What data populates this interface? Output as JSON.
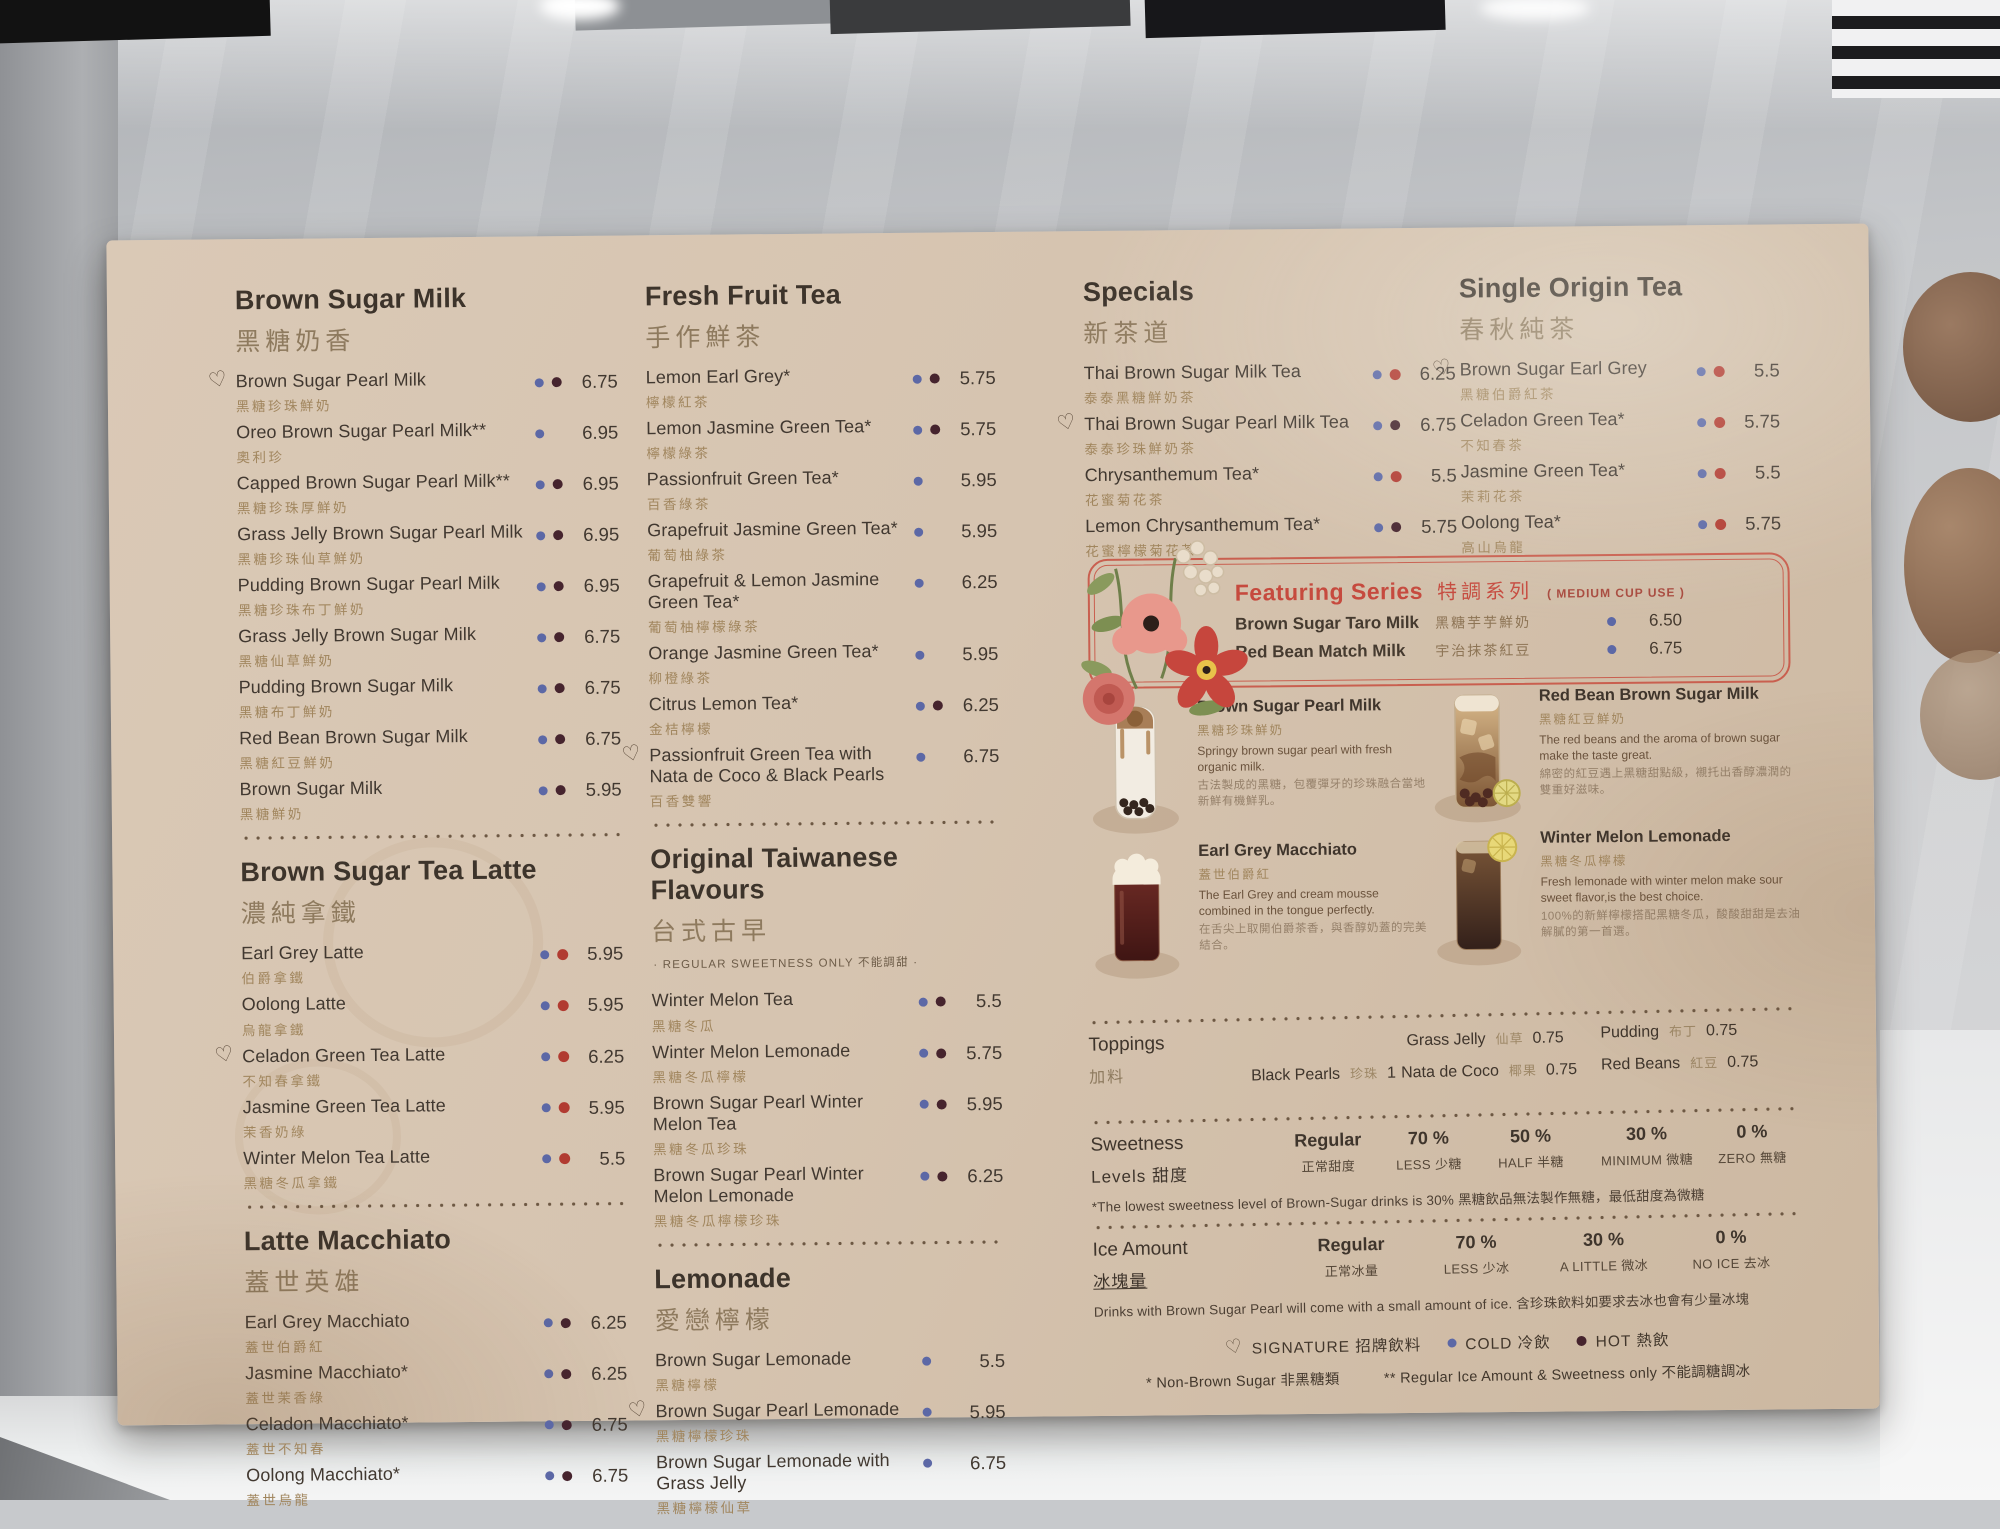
{
  "palette": {
    "card_bg": "#d6c4b0",
    "ink": "#413830",
    "zh_text": "#a1865e",
    "accent_red": "#c64a3e",
    "dot_cold": "#5c68a6",
    "dot_hot": "#46242e",
    "dot_hot_red": "#b13b31"
  },
  "sections": {
    "brown_sugar_milk": {
      "title": "Brown Sugar Milk",
      "subtitle": "黑糖奶香",
      "items": [
        {
          "name": "Brown Sugar Pearl Milk",
          "zh": "黑糖珍珠鮮奶",
          "price": "6.75",
          "dots": [
            "cold",
            "hot"
          ],
          "signature": true
        },
        {
          "name": "Oreo Brown Sugar Pearl Milk**",
          "zh": "奧利珍",
          "price": "6.95",
          "dots": [
            "cold"
          ]
        },
        {
          "name": "Capped Brown Sugar Pearl Milk**",
          "zh": "黑糖珍珠厚鮮奶",
          "price": "6.95",
          "dots": [
            "cold",
            "hot"
          ]
        },
        {
          "name": "Grass Jelly Brown Sugar Pearl Milk",
          "zh": "黑糖珍珠仙草鮮奶",
          "price": "6.95",
          "dots": [
            "cold",
            "hot"
          ]
        },
        {
          "name": "Pudding Brown Sugar Pearl Milk",
          "zh": "黑糖珍珠布丁鮮奶",
          "price": "6.95",
          "dots": [
            "cold",
            "hot"
          ]
        },
        {
          "name": "Grass Jelly Brown Sugar Milk",
          "zh": "黑糖仙草鮮奶",
          "price": "6.75",
          "dots": [
            "cold",
            "hot"
          ]
        },
        {
          "name": "Pudding Brown Sugar Milk",
          "zh": "黑糖布丁鮮奶",
          "price": "6.75",
          "dots": [
            "cold",
            "hot"
          ]
        },
        {
          "name": "Red Bean Brown Sugar Milk",
          "zh": "黑糖紅豆鮮奶",
          "price": "6.75",
          "dots": [
            "cold",
            "hot"
          ]
        },
        {
          "name": "Brown Sugar Milk",
          "zh": "黑糖鮮奶",
          "price": "5.95",
          "dots": [
            "cold",
            "hot"
          ]
        }
      ]
    },
    "brown_sugar_tea_latte": {
      "title": "Brown Sugar Tea Latte",
      "subtitle": "濃純拿鐵",
      "items": [
        {
          "name": "Earl Grey Latte",
          "zh": "伯爵拿鐵",
          "price": "5.95",
          "dots": [
            "cold",
            "hot-red"
          ]
        },
        {
          "name": "Oolong Latte",
          "zh": "烏龍拿鐵",
          "price": "5.95",
          "dots": [
            "cold",
            "hot-red"
          ]
        },
        {
          "name": "Celadon Green Tea Latte",
          "zh": "不知春拿鐵",
          "price": "6.25",
          "dots": [
            "cold",
            "hot-red"
          ],
          "signature": true
        },
        {
          "name": "Jasmine Green Tea Latte",
          "zh": "茉香奶綠",
          "price": "5.95",
          "dots": [
            "cold",
            "hot-red"
          ]
        },
        {
          "name": "Winter Melon Tea Latte",
          "zh": "黑糖冬瓜拿鐵",
          "price": "5.5",
          "dots": [
            "cold",
            "hot-red"
          ]
        }
      ]
    },
    "latte_macchiato": {
      "title": "Latte Macchiato",
      "subtitle": "蓋世英雄",
      "items": [
        {
          "name": "Earl Grey Macchiato",
          "zh": "蓋世伯爵紅",
          "price": "6.25",
          "dots": [
            "cold",
            "hot"
          ]
        },
        {
          "name": "Jasmine Macchiato*",
          "zh": "蓋世茉香綠",
          "price": "6.25",
          "dots": [
            "cold",
            "hot"
          ]
        },
        {
          "name": "Celadon Macchiato*",
          "zh": "蓋世不知春",
          "price": "6.75",
          "dots": [
            "cold",
            "hot"
          ]
        },
        {
          "name": "Oolong Macchiato*",
          "zh": "蓋世烏龍",
          "price": "6.75",
          "dots": [
            "cold",
            "hot"
          ]
        }
      ]
    },
    "fresh_fruit_tea": {
      "title": "Fresh Fruit Tea",
      "subtitle": "手作鮮茶",
      "items": [
        {
          "name": "Lemon Earl Grey*",
          "zh": "檸檬紅茶",
          "price": "5.75",
          "dots": [
            "cold",
            "hot"
          ]
        },
        {
          "name": "Lemon Jasmine Green Tea*",
          "zh": "檸檬綠茶",
          "price": "5.75",
          "dots": [
            "cold",
            "hot"
          ]
        },
        {
          "name": "Passionfruit Green Tea*",
          "zh": "百香綠茶",
          "price": "5.95",
          "dots": [
            "cold"
          ]
        },
        {
          "name": "Grapefruit Jasmine Green Tea*",
          "zh": "葡萄柚綠茶",
          "price": "5.95",
          "dots": [
            "cold"
          ]
        },
        {
          "name": "Grapefruit & Lemon Jasmine Green Tea*",
          "zh": "葡萄柚檸檬綠茶",
          "price": "6.25",
          "dots": [
            "cold"
          ]
        },
        {
          "name": "Orange Jasmine Green Tea*",
          "zh": "柳橙綠茶",
          "price": "5.95",
          "dots": [
            "cold"
          ]
        },
        {
          "name": "Citrus Lemon Tea*",
          "zh": "金桔檸檬",
          "price": "6.25",
          "dots": [
            "cold",
            "hot"
          ]
        },
        {
          "name": "Passionfruit Green Tea with Nata de Coco & Black Pearls",
          "zh": "百香雙響",
          "price": "6.75",
          "dots": [
            "cold"
          ],
          "signature": true
        }
      ]
    },
    "original_taiwanese": {
      "title": "Original Taiwanese Flavours",
      "subtitle": "台式古早",
      "note": "· REGULAR SWEETNESS ONLY 不能調甜 ·",
      "items": [
        {
          "name": "Winter Melon Tea",
          "zh": "黑糖冬瓜",
          "price": "5.5",
          "dots": [
            "cold",
            "hot"
          ]
        },
        {
          "name": "Winter Melon Lemonade",
          "zh": "黑糖冬瓜檸檬",
          "price": "5.75",
          "dots": [
            "cold",
            "hot"
          ]
        },
        {
          "name": "Brown Sugar Pearl Winter Melon Tea",
          "zh": "黑糖冬瓜珍珠",
          "price": "5.95",
          "dots": [
            "cold",
            "hot"
          ]
        },
        {
          "name": "Brown Sugar Pearl Winter Melon Lemonade",
          "zh": "黑糖冬瓜檸檬珍珠",
          "price": "6.25",
          "dots": [
            "cold",
            "hot"
          ]
        }
      ]
    },
    "lemonade": {
      "title": "Lemonade",
      "subtitle": "愛戀檸檬",
      "items": [
        {
          "name": "Brown Sugar Lemonade",
          "zh": "黑糖檸檬",
          "price": "5.5",
          "dots": [
            "cold"
          ]
        },
        {
          "name": "Brown Sugar Pearl Lemonade",
          "zh": "黑糖檸檬珍珠",
          "price": "5.95",
          "dots": [
            "cold"
          ],
          "signature": true
        },
        {
          "name": "Brown Sugar Lemonade with Grass Jelly",
          "zh": "黑糖檸檬仙草",
          "price": "6.75",
          "dots": [
            "cold"
          ]
        }
      ]
    },
    "specials": {
      "title": "Specials",
      "subtitle": "新茶道",
      "items": [
        {
          "name": "Thai Brown Sugar Milk Tea",
          "zh": "泰泰黑糖鮮奶茶",
          "price": "6.25",
          "dots": [
            "cold",
            "hot-red"
          ]
        },
        {
          "name": "Thai Brown Sugar Pearl Milk Tea",
          "zh": "泰泰珍珠鮮奶茶",
          "price": "6.75",
          "dots": [
            "cold",
            "hot"
          ],
          "signature": true
        },
        {
          "name": "Chrysanthemum Tea*",
          "zh": "花蜜菊花茶",
          "price": "5.5",
          "dots": [
            "cold",
            "hot-red"
          ]
        },
        {
          "name": "Lemon Chrysanthemum Tea*",
          "zh": "花蜜檸檬菊花茶",
          "price": "5.75",
          "dots": [
            "cold",
            "hot"
          ]
        }
      ]
    },
    "single_origin": {
      "title": "Single Origin Tea",
      "subtitle": "春秋純茶",
      "items": [
        {
          "name": "Brown Sugar Earl Grey",
          "zh": "黑糖伯爵紅茶",
          "price": "5.5",
          "dots": [
            "cold",
            "hot-red"
          ],
          "signature": true
        },
        {
          "name": "Celadon Green Tea*",
          "zh": "不知春茶",
          "price": "5.75",
          "dots": [
            "cold",
            "hot-red"
          ]
        },
        {
          "name": "Jasmine Green Tea*",
          "zh": "茉莉花茶",
          "price": "5.5",
          "dots": [
            "cold",
            "hot-red"
          ]
        },
        {
          "name": "Oolong Tea*",
          "zh": "高山烏龍",
          "price": "5.75",
          "dots": [
            "cold",
            "hot-red"
          ]
        }
      ]
    }
  },
  "featuring": {
    "title": "Featuring Series",
    "title_zh": "特調系列",
    "note": "( MEDIUM CUP USE )",
    "items": [
      {
        "name": "Brown Sugar Taro Milk",
        "zh": "黑糖芋芋鮮奶",
        "price": "6.50",
        "dots": [
          "cold"
        ]
      },
      {
        "name": "Red Bean Match Milk",
        "zh": "宇治抹茶紅豆",
        "price": "6.75",
        "dots": [
          "cold"
        ]
      }
    ]
  },
  "featured_products": [
    {
      "name": "Brown Sugar Pearl Milk",
      "zh": "黑糖珍珠鮮奶",
      "desc_en": "Springy brown sugar pearl with fresh organic milk.",
      "desc_zh": "古法製成的黑糖，包覆彈牙的珍珠融合當地新鮮有機鮮乳。",
      "image": "pearl-milk-photo"
    },
    {
      "name": "Red Bean Brown Sugar Milk",
      "zh": "黑糖紅豆鮮奶",
      "desc_en": "The red beans and the aroma of brown sugar make the taste great.",
      "desc_zh": "綿密的紅豆遇上黑糖甜點級，襯托出香醇濃潤的雙重好滋味。",
      "image": "red-bean-photo"
    },
    {
      "name": "Earl Grey Macchiato",
      "zh": "蓋世伯爵紅",
      "desc_en": "The Earl Grey and cream mousse combined in the tongue perfectly.",
      "desc_zh": "在舌尖上取開伯爵茶香，與香醇奶蓋的完美結合。",
      "image": "macchiato-photo"
    },
    {
      "name": "Winter Melon Lemonade",
      "zh": "黑糖冬瓜檸檬",
      "desc_en": "Fresh lemonade with winter melon make sour sweet flavor,is the best choice.",
      "desc_zh": "100%的新鮮檸檬搭配黑糖冬瓜，酸酸甜甜是去油解膩的第一首選。",
      "image": "lemonade-photo"
    }
  ],
  "toppings": {
    "label": "Toppings",
    "label_zh": "加料",
    "items": [
      {
        "name": "Black Pearls",
        "zh": "珍珠",
        "price": "1"
      },
      {
        "name": "Grass Jelly",
        "zh": "仙草",
        "price": "0.75"
      },
      {
        "name": "Nata de Coco",
        "zh": "椰果",
        "price": "0.75"
      },
      {
        "name": "Pudding",
        "zh": "布丁",
        "price": "0.75"
      },
      {
        "name": "Red Beans",
        "zh": "紅豆",
        "price": "0.75"
      }
    ]
  },
  "sweetness": {
    "label_line1": "Sweetness",
    "label_line2": "Levels 甜度",
    "options": [
      {
        "top": "Regular",
        "bottom": "正常甜度"
      },
      {
        "top": "70 %",
        "bottom": "LESS 少糖"
      },
      {
        "top": "50 %",
        "bottom": "HALF 半糖"
      },
      {
        "top": "30 %",
        "bottom": "MINIMUM 微糖"
      },
      {
        "top": "0 %",
        "bottom": "ZERO 無糖"
      }
    ],
    "note": "*The lowest sweetness level of Brown-Sugar drinks is 30%  黑糖飲品無法製作無糖，最低甜度為微糖"
  },
  "ice": {
    "label_line1": "Ice Amount",
    "label_line2": "冰塊量",
    "options": [
      {
        "top": "Regular",
        "bottom": "正常冰量"
      },
      {
        "top": "70 %",
        "bottom": "LESS 少冰"
      },
      {
        "top": "30 %",
        "bottom": "A LITTLE 微冰"
      },
      {
        "top": "0 %",
        "bottom": "NO ICE 去冰"
      }
    ],
    "note": "Drinks with Brown Sugar Pearl will come with a small amount of ice.  含珍珠飲料如要求去冰也會有少量冰塊"
  },
  "legend": {
    "signature_label": "SIGNATURE 招牌飲料",
    "cold_label": "COLD 冷飲",
    "hot_label": "HOT 熱飲",
    "note_single": "* Non-Brown Sugar 非黑糖類",
    "note_double": "** Regular Ice Amount & Sweetness only 不能調糖調冰"
  }
}
